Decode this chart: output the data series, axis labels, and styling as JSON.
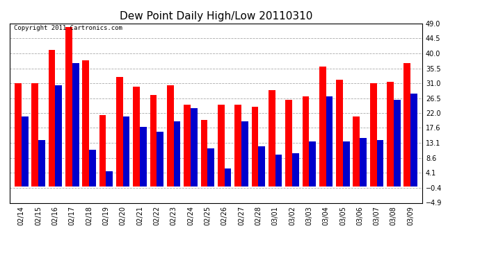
{
  "title": "Dew Point Daily High/Low 20110310",
  "copyright": "Copyright 2011 Cartronics.com",
  "dates": [
    "02/14",
    "02/15",
    "02/16",
    "02/17",
    "02/18",
    "02/19",
    "02/20",
    "02/21",
    "02/22",
    "02/23",
    "02/24",
    "02/25",
    "02/26",
    "02/27",
    "02/28",
    "03/01",
    "03/02",
    "03/03",
    "03/04",
    "03/05",
    "03/06",
    "03/07",
    "03/08",
    "03/09"
  ],
  "highs": [
    31.0,
    31.0,
    41.0,
    48.0,
    38.0,
    21.5,
    33.0,
    30.0,
    27.5,
    30.5,
    24.5,
    20.0,
    24.5,
    24.5,
    24.0,
    29.0,
    26.0,
    27.0,
    36.0,
    32.0,
    21.0,
    31.0,
    31.5,
    37.0
  ],
  "lows": [
    21.0,
    14.0,
    30.5,
    37.0,
    11.0,
    4.5,
    21.0,
    18.0,
    16.5,
    19.5,
    23.5,
    11.5,
    5.5,
    19.5,
    12.0,
    9.5,
    10.0,
    13.5,
    27.0,
    13.5,
    14.5,
    14.0,
    26.0,
    28.0
  ],
  "high_color": "#ff0000",
  "low_color": "#0000cc",
  "background_color": "#ffffff",
  "plot_background": "#ffffff",
  "yticks": [
    -4.9,
    -0.4,
    4.1,
    8.6,
    13.1,
    17.6,
    22.0,
    26.5,
    31.0,
    35.5,
    40.0,
    44.5,
    49.0
  ],
  "ylim": [
    -4.9,
    49.0
  ],
  "grid_color": "#aaaaaa",
  "title_fontsize": 11,
  "copyright_fontsize": 6.5,
  "tick_fontsize": 7,
  "bar_width": 0.4
}
